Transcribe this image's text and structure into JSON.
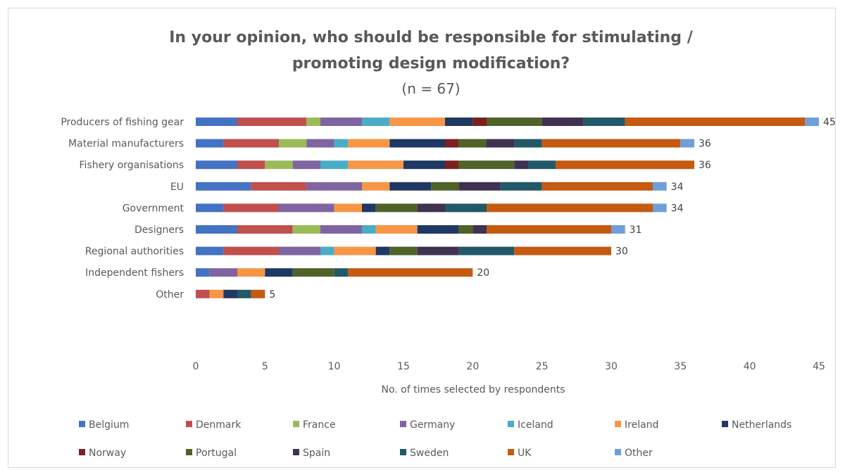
{
  "chart_data": {
    "type": "bar",
    "orientation": "horizontal",
    "stacked": true,
    "title": "In your opinion, who should be responsible for stimulating / promoting design modification?",
    "title_lines": [
      "In your opinion, who should be responsible for stimulating /",
      "promoting design modification?"
    ],
    "subtitle": "(n = 67)",
    "xlabel": "No. of times selected by respondents",
    "ylabel": "",
    "xlim": [
      0,
      45
    ],
    "xticks": [
      0,
      5,
      10,
      15,
      20,
      25,
      30,
      35,
      40,
      45
    ],
    "grid": false,
    "legend_position": "bottom",
    "categories": [
      "Producers of fishing gear",
      "Material manufacturers",
      "Fishery organisations",
      "EU",
      "Government",
      "Designers",
      "Regional authorities",
      "Independent fishers",
      "Other"
    ],
    "totals": [
      45,
      36,
      36,
      34,
      34,
      31,
      30,
      20,
      5
    ],
    "series": [
      {
        "name": "Belgium",
        "color": "#4472c4",
        "values": [
          3,
          2,
          3,
          4,
          2,
          3,
          2,
          1,
          0
        ]
      },
      {
        "name": "Denmark",
        "color": "#c0504d",
        "values": [
          5,
          4,
          2,
          4,
          4,
          4,
          4,
          0,
          1
        ]
      },
      {
        "name": "France",
        "color": "#9bbb59",
        "values": [
          1,
          2,
          2,
          0,
          0,
          2,
          0,
          0,
          0
        ]
      },
      {
        "name": "Germany",
        "color": "#8064a2",
        "values": [
          3,
          2,
          2,
          4,
          4,
          3,
          3,
          2,
          0
        ]
      },
      {
        "name": "Iceland",
        "color": "#4bacc6",
        "values": [
          2,
          1,
          2,
          0,
          0,
          1,
          1,
          0,
          0
        ]
      },
      {
        "name": "Ireland",
        "color": "#f79646",
        "values": [
          4,
          3,
          4,
          2,
          2,
          3,
          3,
          2,
          1
        ]
      },
      {
        "name": "Netherlands",
        "color": "#1f3864",
        "values": [
          2,
          4,
          3,
          3,
          1,
          3,
          1,
          2,
          1
        ]
      },
      {
        "name": "Norway",
        "color": "#7b2120",
        "values": [
          1,
          1,
          1,
          0,
          0,
          0,
          0,
          0,
          0
        ]
      },
      {
        "name": "Portugal",
        "color": "#4f6228",
        "values": [
          4,
          2,
          4,
          2,
          3,
          1,
          2,
          3,
          0
        ]
      },
      {
        "name": "Spain",
        "color": "#403151",
        "values": [
          3,
          2,
          1,
          3,
          2,
          1,
          3,
          0,
          0
        ]
      },
      {
        "name": "Sweden",
        "color": "#215967",
        "values": [
          3,
          2,
          2,
          3,
          3,
          0,
          4,
          1,
          1
        ]
      },
      {
        "name": "UK",
        "color": "#c55a11",
        "values": [
          13,
          10,
          10,
          8,
          12,
          9,
          7,
          9,
          1
        ]
      },
      {
        "name": "Other",
        "color": "#6f9fd8",
        "values": [
          1,
          1,
          0,
          1,
          1,
          1,
          0,
          0,
          0
        ]
      }
    ]
  }
}
